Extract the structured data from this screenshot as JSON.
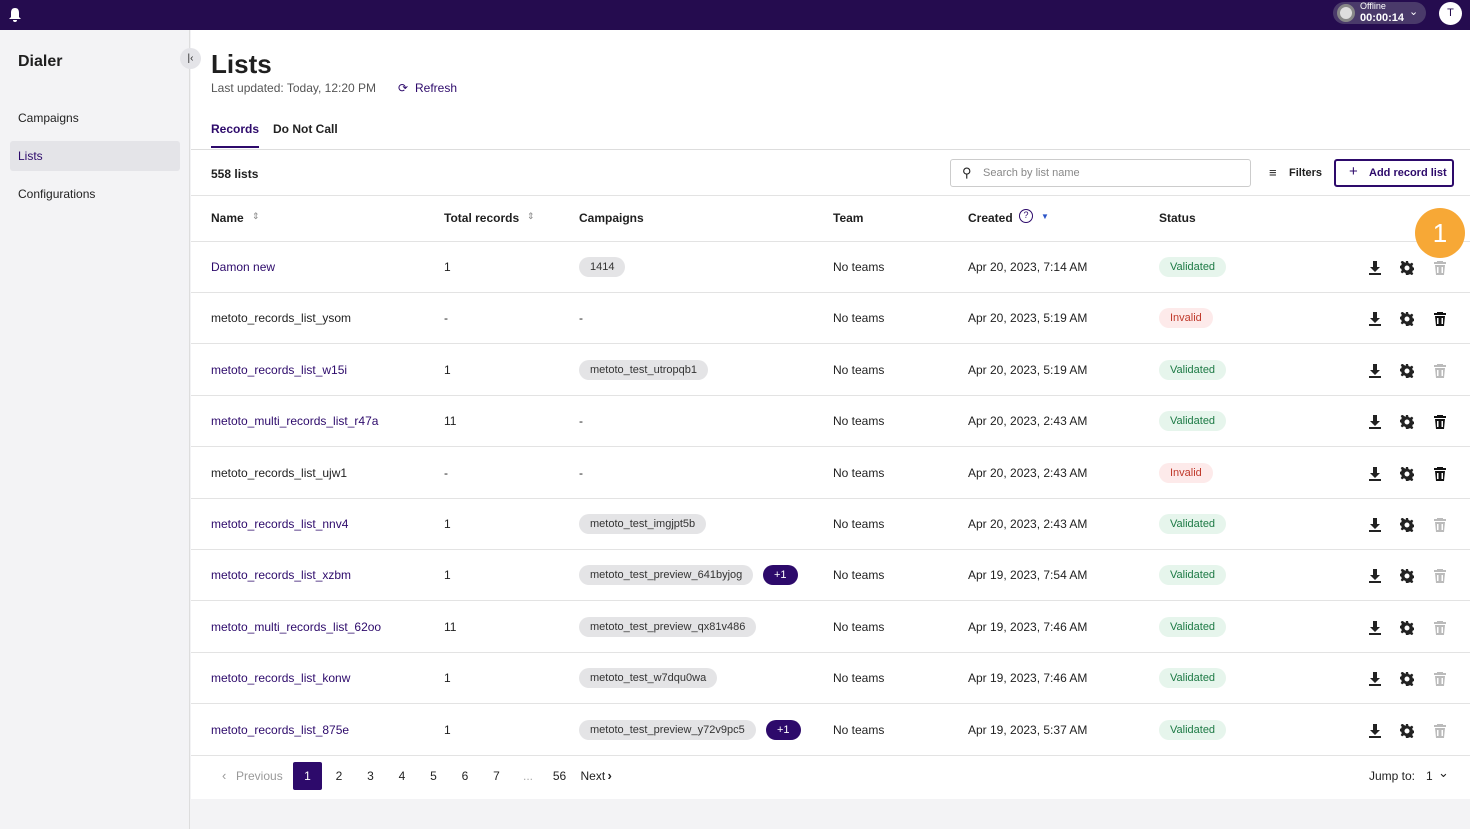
{
  "topbar": {
    "status": "Offline",
    "timer": "00:00:14",
    "avatar": "T"
  },
  "sidebar": {
    "title": "Dialer",
    "items": [
      "Campaigns",
      "Lists",
      "Configurations"
    ],
    "active": 1
  },
  "header": {
    "title": "Lists",
    "updated": "Last updated: Today, 12:20 PM",
    "refresh": "Refresh"
  },
  "tabs": {
    "items": [
      "Records",
      "Do Not Call"
    ],
    "active": 0
  },
  "toolbar": {
    "count": "558 lists",
    "search_placeholder": "Search by list name",
    "filters": "Filters",
    "add": "Add record list"
  },
  "badge": "1",
  "table": {
    "columns": [
      "Name",
      "Total records",
      "Campaigns",
      "Team",
      "Created",
      "Status"
    ],
    "rows": [
      {
        "name": "Damon new",
        "total": "1",
        "campaigns": [
          "1414"
        ],
        "team": "No teams",
        "created": "Apr 20, 2023, 7:14 AM",
        "status": "Validated",
        "valid": true,
        "deletable": false
      },
      {
        "name": "metoto_records_list_ysom",
        "total": "-",
        "campaigns": "-",
        "team": "No teams",
        "created": "Apr 20, 2023, 5:19 AM",
        "status": "Invalid",
        "valid": false,
        "deletable": true
      },
      {
        "name": "metoto_records_list_w15i",
        "total": "1",
        "campaigns": [
          "metoto_test_utropqb1"
        ],
        "team": "No teams",
        "created": "Apr 20, 2023, 5:19 AM",
        "status": "Validated",
        "valid": true,
        "deletable": false
      },
      {
        "name": "metoto_multi_records_list_r47a",
        "total": "11",
        "campaigns": "-",
        "team": "No teams",
        "created": "Apr 20, 2023, 2:43 AM",
        "status": "Validated",
        "valid": true,
        "deletable": true
      },
      {
        "name": "metoto_records_list_ujw1",
        "total": "-",
        "campaigns": "-",
        "team": "No teams",
        "created": "Apr 20, 2023, 2:43 AM",
        "status": "Invalid",
        "valid": false,
        "deletable": true
      },
      {
        "name": "metoto_records_list_nnv4",
        "total": "1",
        "campaigns": [
          "metoto_test_imgjpt5b"
        ],
        "team": "No teams",
        "created": "Apr 20, 2023, 2:43 AM",
        "status": "Validated",
        "valid": true,
        "deletable": false
      },
      {
        "name": "metoto_records_list_xzbm",
        "total": "1",
        "campaigns": [
          "metoto_test_preview_641byjog",
          "+1"
        ],
        "team": "No teams",
        "created": "Apr 19, 2023, 7:54 AM",
        "status": "Validated",
        "valid": true,
        "deletable": false
      },
      {
        "name": "metoto_multi_records_list_62oo",
        "total": "11",
        "campaigns": [
          "metoto_test_preview_qx81v486"
        ],
        "team": "No teams",
        "created": "Apr 19, 2023, 7:46 AM",
        "status": "Validated",
        "valid": true,
        "deletable": false
      },
      {
        "name": "metoto_records_list_konw",
        "total": "1",
        "campaigns": [
          "metoto_test_w7dqu0wa"
        ],
        "team": "No teams",
        "created": "Apr 19, 2023, 7:46 AM",
        "status": "Validated",
        "valid": true,
        "deletable": false
      },
      {
        "name": "metoto_records_list_875e",
        "total": "1",
        "campaigns": [
          "metoto_test_preview_y72v9pc5",
          "+1"
        ],
        "team": "No teams",
        "created": "Apr 19, 2023, 5:37 AM",
        "status": "Validated",
        "valid": true,
        "deletable": false
      }
    ]
  },
  "pagination": {
    "previous": "Previous",
    "pages": [
      "1",
      "2",
      "3",
      "4",
      "5",
      "6",
      "7",
      "...",
      "56"
    ],
    "current": 0,
    "next": "Next",
    "jump_label": "Jump to:",
    "jump_value": "1"
  }
}
